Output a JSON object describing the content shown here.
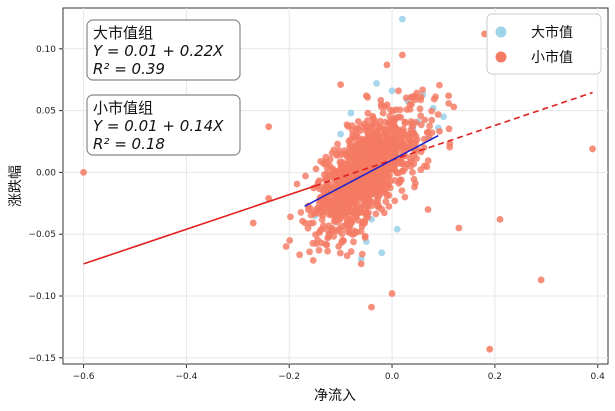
{
  "chart_data": {
    "type": "scatter",
    "title": "",
    "xlabel": "净流入",
    "ylabel": "涨跌幅",
    "xlim": [
      -0.64,
      0.42
    ],
    "ylim": [
      -0.155,
      0.133
    ],
    "x_ticks": [
      -0.6,
      -0.4,
      -0.2,
      0.0,
      0.2,
      0.4
    ],
    "x_tick_labels": [
      "−0.6",
      "−0.4",
      "−0.2",
      "0.0",
      "0.2",
      "0.4"
    ],
    "y_ticks": [
      -0.15,
      -0.1,
      -0.05,
      0.0,
      0.05,
      0.1
    ],
    "y_tick_labels": [
      "−0.15",
      "−0.10",
      "−0.05",
      "0.00",
      "0.05",
      "0.10"
    ],
    "grid": true,
    "legend_position": "top-right",
    "series": [
      {
        "name": "大市值",
        "color": "#9fd3ea",
        "points": [
          [
            0.02,
            0.124
          ],
          [
            0.06,
            0.063
          ],
          [
            0.1,
            0.045
          ],
          [
            0.08,
            0.052
          ],
          [
            -0.03,
            0.072
          ],
          [
            -0.12,
            -0.049
          ],
          [
            -0.05,
            -0.056
          ],
          [
            0.01,
            -0.046
          ],
          [
            0.04,
            0.035
          ],
          [
            -0.08,
            0.048
          ],
          [
            -0.15,
            -0.035
          ],
          [
            0.07,
            0.028
          ],
          [
            -0.02,
            -0.065
          ],
          [
            0.03,
            0.058
          ],
          [
            0.09,
            0.036
          ],
          [
            -0.06,
            -0.07
          ],
          [
            0.05,
            0.041
          ],
          [
            -0.1,
            0.031
          ],
          [
            0.0,
            0.066
          ],
          [
            -0.04,
            -0.038
          ]
        ],
        "regression": {
          "intercept": 0.01,
          "slope": 0.22,
          "r2": 0.39,
          "x_range": [
            -0.17,
            0.09
          ],
          "line_color": "#2222cc"
        }
      },
      {
        "name": "小市值",
        "color": "#f47a63",
        "points": [
          [
            -0.6,
            0.0
          ],
          [
            0.39,
            0.019
          ],
          [
            0.29,
            -0.087
          ],
          [
            0.19,
            -0.143
          ],
          [
            0.21,
            -0.038
          ],
          [
            0.18,
            0.112
          ],
          [
            -0.01,
            0.087
          ],
          [
            0.02,
            0.095
          ],
          [
            -0.05,
            0.062
          ],
          [
            0.07,
            -0.03
          ],
          [
            -0.04,
            -0.109
          ],
          [
            -0.24,
            0.037
          ],
          [
            -0.24,
            -0.021
          ],
          [
            -0.27,
            -0.041
          ],
          [
            0.11,
            0.062
          ],
          [
            -0.1,
            0.071
          ],
          [
            0.0,
            -0.098
          ],
          [
            -0.06,
            -0.074
          ],
          [
            0.13,
            -0.045
          ],
          [
            0.12,
            0.053
          ]
        ],
        "cluster": {
          "center": [
            -0.05,
            0.0
          ],
          "count": 1100,
          "x_spread": 0.052,
          "y_spread": 0.022,
          "correlation": 0.45,
          "seed": 7
        },
        "regression": {
          "intercept": 0.01,
          "slope": 0.14,
          "r2": 0.18,
          "x_range": [
            -0.6,
            0.39
          ],
          "solid_until": -0.15,
          "line_color": "#e02020"
        }
      }
    ],
    "annotations": [
      {
        "lines": [
          "大市值组",
          "Y = 0.01 + 0.22X",
          "R² = 0.39"
        ]
      },
      {
        "lines": [
          "小市值组",
          "Y = 0.01 + 0.14X",
          "R² = 0.18"
        ]
      }
    ]
  }
}
